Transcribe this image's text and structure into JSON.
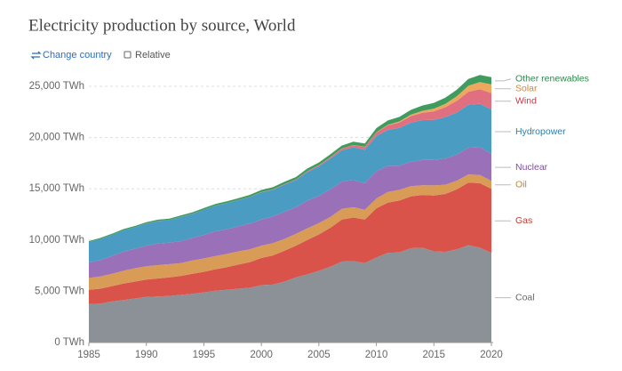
{
  "header": {
    "title": "Electricity production by source, World",
    "change_country": "Change country",
    "relative": "Relative"
  },
  "chart_data": {
    "type": "stacked-area",
    "x": [
      1985,
      1986,
      1987,
      1988,
      1989,
      1990,
      1991,
      1992,
      1993,
      1994,
      1995,
      1996,
      1997,
      1998,
      1999,
      2000,
      2001,
      2002,
      2003,
      2004,
      2005,
      2006,
      2007,
      2008,
      2009,
      2010,
      2011,
      2012,
      2013,
      2014,
      2015,
      2016,
      2017,
      2018,
      2019,
      2020
    ],
    "series": [
      {
        "name": "Coal",
        "color": "#8c9097",
        "values": [
          3750,
          3800,
          4000,
          4150,
          4300,
          4450,
          4500,
          4550,
          4650,
          4750,
          4900,
          5050,
          5150,
          5250,
          5350,
          5600,
          5650,
          5950,
          6350,
          6650,
          7000,
          7400,
          7900,
          7950,
          7750,
          8300,
          8750,
          8800,
          9200,
          9250,
          8900,
          8850,
          9100,
          9500,
          9250,
          8750
        ]
      },
      {
        "name": "Gas",
        "color": "#d9534a",
        "values": [
          1400,
          1450,
          1500,
          1600,
          1650,
          1700,
          1750,
          1800,
          1850,
          1950,
          2000,
          2100,
          2200,
          2350,
          2500,
          2650,
          2850,
          3000,
          3100,
          3350,
          3550,
          3800,
          4100,
          4250,
          4250,
          4800,
          4900,
          5050,
          5050,
          5150,
          5450,
          5650,
          5850,
          6100,
          6300,
          6250
        ]
      },
      {
        "name": "Oil",
        "color": "#d99c57",
        "values": [
          1150,
          1200,
          1200,
          1250,
          1300,
          1300,
          1300,
          1300,
          1250,
          1300,
          1300,
          1300,
          1300,
          1300,
          1250,
          1200,
          1200,
          1150,
          1150,
          1150,
          1100,
          1050,
          1050,
          1000,
          950,
          950,
          1050,
          1050,
          1000,
          950,
          980,
          900,
          850,
          800,
          800,
          780
        ]
      },
      {
        "name": "Nuclear",
        "color": "#9a70b8",
        "values": [
          1500,
          1600,
          1750,
          1850,
          1900,
          2000,
          2100,
          2100,
          2150,
          2200,
          2300,
          2400,
          2400,
          2450,
          2500,
          2550,
          2600,
          2650,
          2600,
          2700,
          2650,
          2700,
          2650,
          2650,
          2600,
          2650,
          2550,
          2350,
          2400,
          2450,
          2500,
          2550,
          2550,
          2600,
          2700,
          2620
        ]
      },
      {
        "name": "Hydropower",
        "color": "#4b9cc2",
        "values": [
          2000,
          2050,
          2050,
          2100,
          2100,
          2150,
          2200,
          2200,
          2350,
          2350,
          2450,
          2500,
          2550,
          2550,
          2600,
          2650,
          2600,
          2650,
          2650,
          2800,
          2900,
          3000,
          3050,
          3200,
          3250,
          3450,
          3500,
          3700,
          3800,
          3900,
          3900,
          4050,
          4100,
          4200,
          4250,
          4350
        ]
      },
      {
        "name": "Wind",
        "color": "#e0707f",
        "values": [
          0,
          0,
          0,
          0,
          0,
          4,
          4,
          5,
          6,
          7,
          8,
          9,
          12,
          16,
          21,
          31,
          38,
          52,
          63,
          85,
          104,
          133,
          170,
          220,
          276,
          342,
          437,
          524,
          640,
          712,
          831,
          958,
          1140,
          1270,
          1420,
          1590
        ]
      },
      {
        "name": "Solar",
        "color": "#eda85e",
        "values": [
          0,
          0,
          0,
          0,
          0,
          0,
          0,
          0,
          0,
          0,
          0,
          0,
          0,
          0,
          0,
          0,
          0,
          0,
          0,
          3,
          4,
          6,
          8,
          12,
          20,
          32,
          64,
          100,
          140,
          190,
          256,
          330,
          450,
          580,
          700,
          840
        ]
      },
      {
        "name": "Other renewables",
        "color": "#3f9c5e",
        "values": [
          100,
          105,
          110,
          115,
          120,
          130,
          135,
          140,
          145,
          150,
          160,
          165,
          170,
          175,
          185,
          210,
          215,
          225,
          235,
          245,
          260,
          275,
          290,
          310,
          330,
          400,
          420,
          440,
          470,
          520,
          570,
          600,
          630,
          660,
          690,
          710
        ]
      }
    ],
    "label_colors": [
      "#666666",
      "#c9392f",
      "#c7822e",
      "#7e4fa0",
      "#2f7fa8",
      "#cc3344",
      "#d9822b",
      "#2e8a4d"
    ],
    "xlim": [
      1985,
      2020
    ],
    "xticks": [
      1985,
      1990,
      1995,
      2000,
      2005,
      2010,
      2015,
      2020
    ],
    "ylim": [
      0,
      25000
    ],
    "yticks": [
      {
        "value": 0,
        "label": "0 TWh"
      },
      {
        "value": 5000,
        "label": "5,000 TWh"
      },
      {
        "value": 10000,
        "label": "10,000 TWh"
      },
      {
        "value": 15000,
        "label": "15,000 TWh"
      },
      {
        "value": 20000,
        "label": "20,000 TWh"
      },
      {
        "value": 25000,
        "label": "25,000 TWh"
      }
    ],
    "grid": true
  }
}
